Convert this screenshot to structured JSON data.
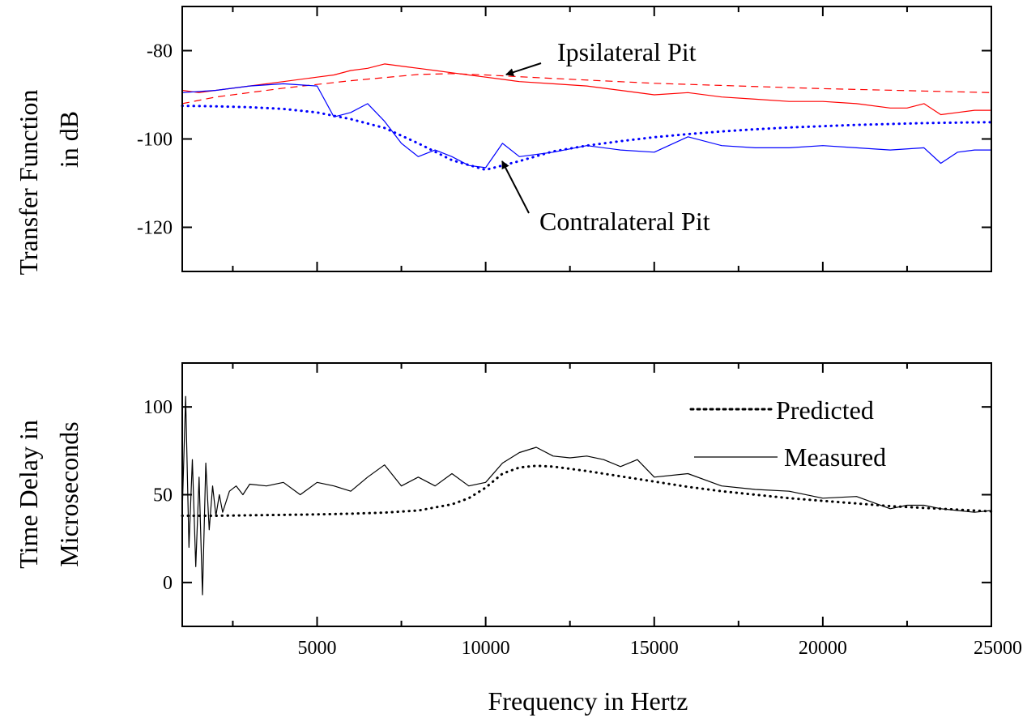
{
  "figure": {
    "xlabel": "Frequency in Hertz"
  },
  "chart_data": [
    {
      "type": "line",
      "ylabel_lines": [
        "Transfer Function",
        "in dB"
      ],
      "xlim": [
        1000,
        25000
      ],
      "ylim": [
        -130,
        -70
      ],
      "x_ticks": [
        5000,
        10000,
        15000,
        20000,
        25000
      ],
      "x_tick_labels_shown": false,
      "y_ticks": [
        -80,
        -100,
        -120
      ],
      "y_tick_labels": [
        "-80",
        "-100",
        "-120"
      ],
      "grid": false,
      "annotations": [
        {
          "text": "Ipsilateral Pit",
          "arrow_to": [
            10500,
            -85.5
          ]
        },
        {
          "text": "Contralateral Pit",
          "arrow_to": [
            10500,
            -105.5
          ]
        }
      ],
      "series": [
        {
          "color": "#ff0000",
          "style": "solid",
          "x": [
            1000,
            1500,
            2000,
            3000,
            4000,
            5000,
            5500,
            6000,
            6500,
            7000,
            7500,
            8000,
            8500,
            9000,
            9500,
            10000,
            10500,
            11000,
            12000,
            13000,
            14000,
            15000,
            16000,
            17000,
            18000,
            19000,
            20000,
            21000,
            22000,
            22500,
            23000,
            23500,
            24000,
            24500,
            25000
          ],
          "y": [
            -89,
            -89.5,
            -89,
            -88,
            -87,
            -86,
            -85.5,
            -84.5,
            -84,
            -83,
            -83.5,
            -84,
            -84.5,
            -85,
            -85.5,
            -86,
            -86.5,
            -87,
            -87.5,
            -88,
            -89,
            -90,
            -89.5,
            -90.5,
            -91,
            -91.5,
            -91.5,
            -92,
            -93,
            -93,
            -92,
            -94.5,
            -94,
            -93.5,
            -93.5
          ]
        },
        {
          "color": "#ff0000",
          "style": "dashed",
          "x": [
            1000,
            2000,
            4000,
            6000,
            8000,
            9000,
            10000,
            12000,
            15000,
            20000,
            25000
          ],
          "y": [
            -92,
            -90.5,
            -88.5,
            -86.8,
            -85.4,
            -85.2,
            -85.5,
            -86.3,
            -87.4,
            -88.6,
            -89.5
          ]
        },
        {
          "color": "#0000ff",
          "style": "solid",
          "x": [
            1000,
            2000,
            3000,
            4000,
            5000,
            5500,
            6000,
            6500,
            7000,
            7500,
            8000,
            8500,
            9000,
            9500,
            10000,
            10500,
            11000,
            12000,
            13000,
            14000,
            15000,
            16000,
            17000,
            18000,
            19000,
            20000,
            21000,
            22000,
            23000,
            23500,
            24000,
            24500,
            25000
          ],
          "y": [
            -89.5,
            -89,
            -88,
            -87.5,
            -88,
            -95,
            -94,
            -92,
            -96,
            -101,
            -104,
            -102.5,
            -104,
            -106,
            -106.5,
            -101,
            -104,
            -103,
            -101.5,
            -102.5,
            -103,
            -99.5,
            -101.5,
            -102,
            -102,
            -101.5,
            -102,
            -102.5,
            -102,
            -105.5,
            -103,
            -102.5,
            -102.5
          ]
        },
        {
          "color": "#0000ff",
          "style": "dotted",
          "x": [
            1000,
            2000,
            3000,
            4000,
            5000,
            6000,
            7000,
            8000,
            9000,
            10000,
            11000,
            12000,
            13000,
            14000,
            15000,
            16000,
            17000,
            18000,
            19000,
            20000,
            21000,
            22000,
            23000,
            24000,
            25000
          ],
          "y": [
            -92.5,
            -92.6,
            -92.8,
            -93.2,
            -94,
            -95.5,
            -97.5,
            -101,
            -104.8,
            -107,
            -105,
            -102.8,
            -101.5,
            -100.5,
            -99.6,
            -98.9,
            -98.3,
            -97.8,
            -97.4,
            -97.1,
            -96.8,
            -96.6,
            -96.4,
            -96.3,
            -96.2
          ]
        }
      ]
    },
    {
      "type": "line",
      "ylabel_lines": [
        "Time Delay in",
        "Microseconds"
      ],
      "xlim": [
        1000,
        25000
      ],
      "ylim": [
        -25,
        125
      ],
      "x_ticks": [
        5000,
        10000,
        15000,
        20000,
        25000
      ],
      "x_tick_labels": [
        "5000",
        "10000",
        "15000",
        "20000",
        "25000"
      ],
      "y_ticks": [
        100,
        50,
        0
      ],
      "y_tick_labels": [
        "100",
        "50",
        "0"
      ],
      "grid": false,
      "legend_position": "top-right",
      "series": [
        {
          "name": "Predicted",
          "color": "#000000",
          "style": "dotted",
          "x": [
            1000,
            2000,
            3000,
            4000,
            5000,
            6000,
            7000,
            8000,
            9000,
            9500,
            10000,
            10500,
            11000,
            11500,
            12000,
            13000,
            14000,
            15000,
            16000,
            17000,
            18000,
            19000,
            20000,
            21000,
            22000,
            23000,
            24000,
            25000
          ],
          "y": [
            38,
            38,
            38.3,
            38.5,
            38.8,
            39.2,
            39.8,
            41,
            44.5,
            48,
            54,
            62,
            65.5,
            66.5,
            66,
            63.5,
            60.5,
            57.5,
            54.5,
            52,
            50,
            48,
            46.5,
            45,
            43.5,
            42.5,
            41.5,
            40.5
          ]
        },
        {
          "name": "Measured",
          "color": "#000000",
          "style": "solid",
          "x": [
            1000,
            1100,
            1200,
            1300,
            1400,
            1500,
            1600,
            1700,
            1800,
            1900,
            2000,
            2100,
            2200,
            2400,
            2600,
            2800,
            3000,
            3500,
            4000,
            4500,
            5000,
            5500,
            6000,
            6500,
            7000,
            7500,
            8000,
            8500,
            9000,
            9500,
            10000,
            10500,
            11000,
            11500,
            12000,
            12500,
            13000,
            13500,
            14000,
            14500,
            15000,
            16000,
            17000,
            18000,
            19000,
            20000,
            21000,
            22000,
            22500,
            23000,
            23500,
            24000,
            24500,
            25000
          ],
          "y": [
            40,
            106,
            20,
            70,
            9,
            60,
            -7,
            68,
            30,
            55,
            38,
            50,
            40,
            52,
            55,
            50,
            56,
            55,
            57,
            50,
            57,
            55,
            52,
            60,
            67,
            55,
            60,
            55,
            62,
            55,
            57,
            68,
            74,
            77,
            72,
            71,
            72,
            70,
            66,
            70,
            60,
            62,
            55,
            53,
            52,
            48,
            49,
            42,
            44,
            44,
            42,
            41,
            40,
            41
          ]
        }
      ]
    }
  ]
}
